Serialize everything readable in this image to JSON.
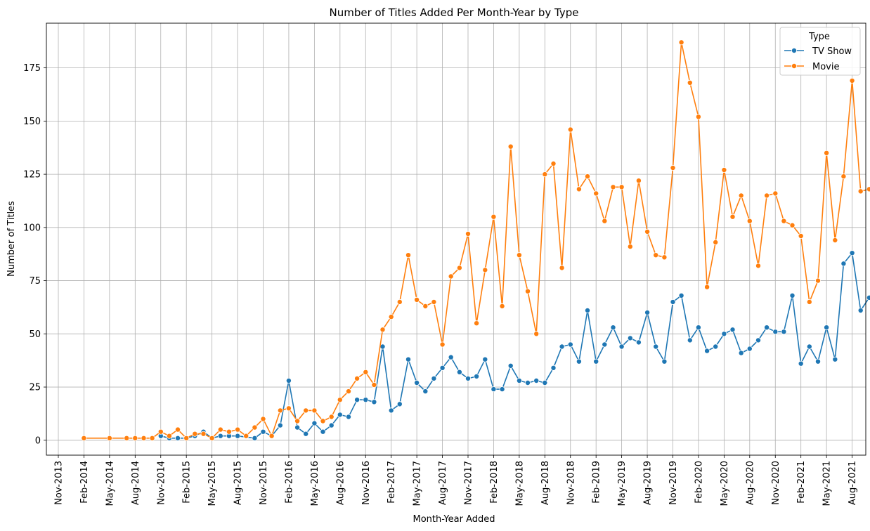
{
  "chart_data": {
    "type": "line",
    "title": "Number of Titles Added Per Month-Year by Type",
    "xlabel": "Month-Year Added",
    "ylabel": "Number of Titles",
    "xlim": [
      "2013-11",
      "2021-11"
    ],
    "ylim": [
      -7,
      196
    ],
    "yticks": [
      0,
      25,
      50,
      75,
      100,
      125,
      150,
      175
    ],
    "xticks": [
      "Nov-2013",
      "Feb-2014",
      "May-2014",
      "Aug-2014",
      "Nov-2014",
      "Feb-2015",
      "May-2015",
      "Aug-2015",
      "Nov-2015",
      "Feb-2016",
      "May-2016",
      "Aug-2016",
      "Nov-2016",
      "Feb-2017",
      "May-2017",
      "Aug-2017",
      "Nov-2017",
      "Feb-2018",
      "May-2018",
      "Aug-2018",
      "Nov-2018",
      "Feb-2019",
      "May-2019",
      "Aug-2019",
      "Nov-2019",
      "Feb-2020",
      "May-2020",
      "Aug-2020",
      "Nov-2020",
      "Feb-2021",
      "May-2021",
      "Aug-2021",
      "Nov-2021"
    ],
    "grid": true,
    "legend": {
      "title": "Type",
      "position": "top-right"
    },
    "series": [
      {
        "name": "TV Show",
        "color": "#1f77b4",
        "points": [
          [
            "2014-11",
            2
          ],
          [
            "2014-12",
            1
          ],
          [
            "2015-01",
            1
          ],
          [
            "2015-02",
            1
          ],
          [
            "2015-03",
            2
          ],
          [
            "2015-04",
            4
          ],
          [
            "2015-05",
            1
          ],
          [
            "2015-06",
            2
          ],
          [
            "2015-07",
            2
          ],
          [
            "2015-08",
            2
          ],
          [
            "2015-10",
            1
          ],
          [
            "2015-11",
            4
          ],
          [
            "2015-12",
            2
          ],
          [
            "2016-01",
            7
          ],
          [
            "2016-02",
            28
          ],
          [
            "2016-03",
            6
          ],
          [
            "2016-04",
            3
          ],
          [
            "2016-05",
            8
          ],
          [
            "2016-06",
            4
          ],
          [
            "2016-07",
            7
          ],
          [
            "2016-08",
            12
          ],
          [
            "2016-09",
            11
          ],
          [
            "2016-10",
            19
          ],
          [
            "2016-11",
            19
          ],
          [
            "2016-12",
            18
          ],
          [
            "2017-01",
            44
          ],
          [
            "2017-02",
            14
          ],
          [
            "2017-03",
            17
          ],
          [
            "2017-04",
            38
          ],
          [
            "2017-05",
            27
          ],
          [
            "2017-06",
            23
          ],
          [
            "2017-07",
            29
          ],
          [
            "2017-08",
            34
          ],
          [
            "2017-09",
            39
          ],
          [
            "2017-10",
            32
          ],
          [
            "2017-11",
            29
          ],
          [
            "2017-12",
            30
          ],
          [
            "2018-01",
            38
          ],
          [
            "2018-02",
            24
          ],
          [
            "2018-03",
            24
          ],
          [
            "2018-04",
            35
          ],
          [
            "2018-05",
            28
          ],
          [
            "2018-06",
            27
          ],
          [
            "2018-07",
            28
          ],
          [
            "2018-08",
            27
          ],
          [
            "2018-09",
            34
          ],
          [
            "2018-10",
            44
          ],
          [
            "2018-11",
            45
          ],
          [
            "2018-12",
            37
          ],
          [
            "2019-01",
            61
          ],
          [
            "2019-02",
            37
          ],
          [
            "2019-03",
            45
          ],
          [
            "2019-04",
            53
          ],
          [
            "2019-05",
            44
          ],
          [
            "2019-06",
            48
          ],
          [
            "2019-07",
            46
          ],
          [
            "2019-08",
            60
          ],
          [
            "2019-09",
            44
          ],
          [
            "2019-10",
            37
          ],
          [
            "2019-11",
            65
          ],
          [
            "2019-12",
            68
          ],
          [
            "2020-01",
            47
          ],
          [
            "2020-02",
            53
          ],
          [
            "2020-03",
            42
          ],
          [
            "2020-04",
            44
          ],
          [
            "2020-05",
            50
          ],
          [
            "2020-06",
            52
          ],
          [
            "2020-07",
            41
          ],
          [
            "2020-08",
            43
          ],
          [
            "2020-09",
            47
          ],
          [
            "2020-10",
            53
          ],
          [
            "2020-11",
            51
          ],
          [
            "2020-12",
            51
          ],
          [
            "2021-01",
            68
          ],
          [
            "2021-02",
            36
          ],
          [
            "2021-03",
            44
          ],
          [
            "2021-04",
            37
          ],
          [
            "2021-05",
            53
          ],
          [
            "2021-06",
            38
          ],
          [
            "2021-07",
            83
          ],
          [
            "2021-08",
            88
          ],
          [
            "2021-09",
            61
          ],
          [
            "2021-10",
            67
          ]
        ]
      },
      {
        "name": "Movie",
        "color": "#ff7f0e",
        "points": [
          [
            "2014-02",
            1
          ],
          [
            "2014-05",
            1
          ],
          [
            "2014-07",
            1
          ],
          [
            "2014-08",
            1
          ],
          [
            "2014-09",
            1
          ],
          [
            "2014-10",
            1
          ],
          [
            "2014-11",
            4
          ],
          [
            "2014-12",
            2
          ],
          [
            "2015-01",
            5
          ],
          [
            "2015-02",
            1
          ],
          [
            "2015-03",
            3
          ],
          [
            "2015-04",
            3
          ],
          [
            "2015-05",
            1
          ],
          [
            "2015-06",
            5
          ],
          [
            "2015-07",
            4
          ],
          [
            "2015-08",
            5
          ],
          [
            "2015-09",
            2
          ],
          [
            "2015-10",
            6
          ],
          [
            "2015-11",
            10
          ],
          [
            "2015-12",
            2
          ],
          [
            "2016-01",
            14
          ],
          [
            "2016-02",
            15
          ],
          [
            "2016-03",
            9
          ],
          [
            "2016-04",
            14
          ],
          [
            "2016-05",
            14
          ],
          [
            "2016-06",
            9
          ],
          [
            "2016-07",
            11
          ],
          [
            "2016-08",
            19
          ],
          [
            "2016-09",
            23
          ],
          [
            "2016-10",
            29
          ],
          [
            "2016-11",
            32
          ],
          [
            "2016-12",
            26
          ],
          [
            "2017-01",
            52
          ],
          [
            "2017-02",
            58
          ],
          [
            "2017-03",
            65
          ],
          [
            "2017-04",
            87
          ],
          [
            "2017-05",
            66
          ],
          [
            "2017-06",
            63
          ],
          [
            "2017-07",
            65
          ],
          [
            "2017-08",
            45
          ],
          [
            "2017-09",
            77
          ],
          [
            "2017-10",
            81
          ],
          [
            "2017-11",
            97
          ],
          [
            "2017-12",
            55
          ],
          [
            "2018-01",
            80
          ],
          [
            "2018-02",
            105
          ],
          [
            "2018-03",
            63
          ],
          [
            "2018-04",
            138
          ],
          [
            "2018-05",
            87
          ],
          [
            "2018-06",
            70
          ],
          [
            "2018-07",
            50
          ],
          [
            "2018-08",
            125
          ],
          [
            "2018-09",
            130
          ],
          [
            "2018-10",
            81
          ],
          [
            "2018-11",
            146
          ],
          [
            "2018-12",
            118
          ],
          [
            "2019-01",
            124
          ],
          [
            "2019-02",
            116
          ],
          [
            "2019-03",
            103
          ],
          [
            "2019-04",
            119
          ],
          [
            "2019-05",
            119
          ],
          [
            "2019-06",
            91
          ],
          [
            "2019-07",
            122
          ],
          [
            "2019-08",
            98
          ],
          [
            "2019-09",
            87
          ],
          [
            "2019-10",
            86
          ],
          [
            "2019-11",
            128
          ],
          [
            "2019-12",
            187
          ],
          [
            "2020-01",
            168
          ],
          [
            "2020-02",
            152
          ],
          [
            "2020-03",
            72
          ],
          [
            "2020-04",
            93
          ],
          [
            "2020-05",
            127
          ],
          [
            "2020-06",
            105
          ],
          [
            "2020-07",
            115
          ],
          [
            "2020-08",
            103
          ],
          [
            "2020-09",
            82
          ],
          [
            "2020-10",
            115
          ],
          [
            "2020-11",
            116
          ],
          [
            "2020-12",
            103
          ],
          [
            "2021-01",
            101
          ],
          [
            "2021-02",
            96
          ],
          [
            "2021-03",
            65
          ],
          [
            "2021-04",
            75
          ],
          [
            "2021-05",
            135
          ],
          [
            "2021-06",
            94
          ],
          [
            "2021-07",
            124
          ],
          [
            "2021-08",
            169
          ],
          [
            "2021-09",
            117
          ],
          [
            "2021-10",
            118
          ]
        ]
      }
    ]
  }
}
